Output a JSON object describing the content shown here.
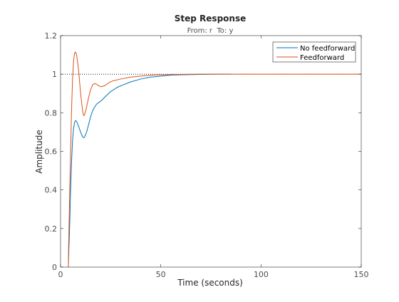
{
  "chart_data": {
    "type": "line",
    "title": "Step Response",
    "subtitle": "From: r  To: y",
    "xlabel": "Time (seconds)",
    "ylabel": "Amplitude",
    "xlim": [
      0,
      150
    ],
    "ylim": [
      0,
      1.2
    ],
    "xticks": [
      0,
      50,
      100,
      150
    ],
    "xtick_labels": [
      "0",
      "50",
      "100",
      "150"
    ],
    "yticks": [
      0,
      0.2,
      0.4,
      0.6,
      0.8,
      1,
      1.2
    ],
    "ytick_labels": [
      "0",
      "0.2",
      "0.4",
      "0.6",
      "0.8",
      "1",
      "1.2"
    ],
    "grid": false,
    "reference_line": {
      "y": 1,
      "style": "dotted",
      "color": "#000000"
    },
    "legend": {
      "position": "top-right",
      "entries": [
        "No feedforward",
        "Feedforward"
      ]
    },
    "series": [
      {
        "name": "No feedforward",
        "color": "#0072BD",
        "points": [
          [
            3.9,
            0
          ],
          [
            4.0,
            0.05
          ],
          [
            4.5,
            0.2
          ],
          [
            5,
            0.4
          ],
          [
            5.5,
            0.55
          ],
          [
            6,
            0.66
          ],
          [
            6.5,
            0.72
          ],
          [
            7,
            0.75
          ],
          [
            7.5,
            0.76
          ],
          [
            8,
            0.755
          ],
          [
            9,
            0.73
          ],
          [
            10,
            0.7
          ],
          [
            11,
            0.675
          ],
          [
            11.5,
            0.67
          ],
          [
            12,
            0.675
          ],
          [
            13,
            0.7
          ],
          [
            14,
            0.74
          ],
          [
            15,
            0.78
          ],
          [
            16,
            0.81
          ],
          [
            17,
            0.83
          ],
          [
            18,
            0.845
          ],
          [
            20,
            0.86
          ],
          [
            22,
            0.88
          ],
          [
            25,
            0.91
          ],
          [
            28,
            0.93
          ],
          [
            30,
            0.94
          ],
          [
            35,
            0.96
          ],
          [
            40,
            0.975
          ],
          [
            45,
            0.985
          ],
          [
            50,
            0.99
          ],
          [
            55,
            0.995
          ],
          [
            60,
            0.997
          ],
          [
            65,
            0.998
          ],
          [
            70,
            0.999
          ],
          [
            75,
            0.9995
          ],
          [
            80,
            1.0
          ],
          [
            85,
            1.0
          ]
        ]
      },
      {
        "name": "Feedforward",
        "color": "#D95319",
        "points": [
          [
            3.9,
            0
          ],
          [
            4.0,
            0.1
          ],
          [
            4.5,
            0.35
          ],
          [
            5,
            0.6
          ],
          [
            5.5,
            0.82
          ],
          [
            6,
            0.98
          ],
          [
            6.5,
            1.07
          ],
          [
            7,
            1.11
          ],
          [
            7.5,
            1.115
          ],
          [
            8,
            1.1
          ],
          [
            9,
            1.02
          ],
          [
            10,
            0.9
          ],
          [
            11,
            0.81
          ],
          [
            11.5,
            0.785
          ],
          [
            12,
            0.79
          ],
          [
            13,
            0.83
          ],
          [
            14,
            0.88
          ],
          [
            15,
            0.92
          ],
          [
            16,
            0.945
          ],
          [
            17,
            0.952
          ],
          [
            18,
            0.948
          ],
          [
            19,
            0.94
          ],
          [
            20,
            0.935
          ],
          [
            22,
            0.94
          ],
          [
            24,
            0.955
          ],
          [
            26,
            0.965
          ],
          [
            30,
            0.975
          ],
          [
            35,
            0.985
          ],
          [
            40,
            0.99
          ],
          [
            45,
            0.995
          ],
          [
            50,
            0.997
          ],
          [
            60,
            0.999
          ],
          [
            70,
            1.0
          ],
          [
            80,
            1.0
          ],
          [
            100,
            1.0
          ],
          [
            120,
            1.0
          ],
          [
            150,
            1.0
          ]
        ]
      }
    ]
  }
}
